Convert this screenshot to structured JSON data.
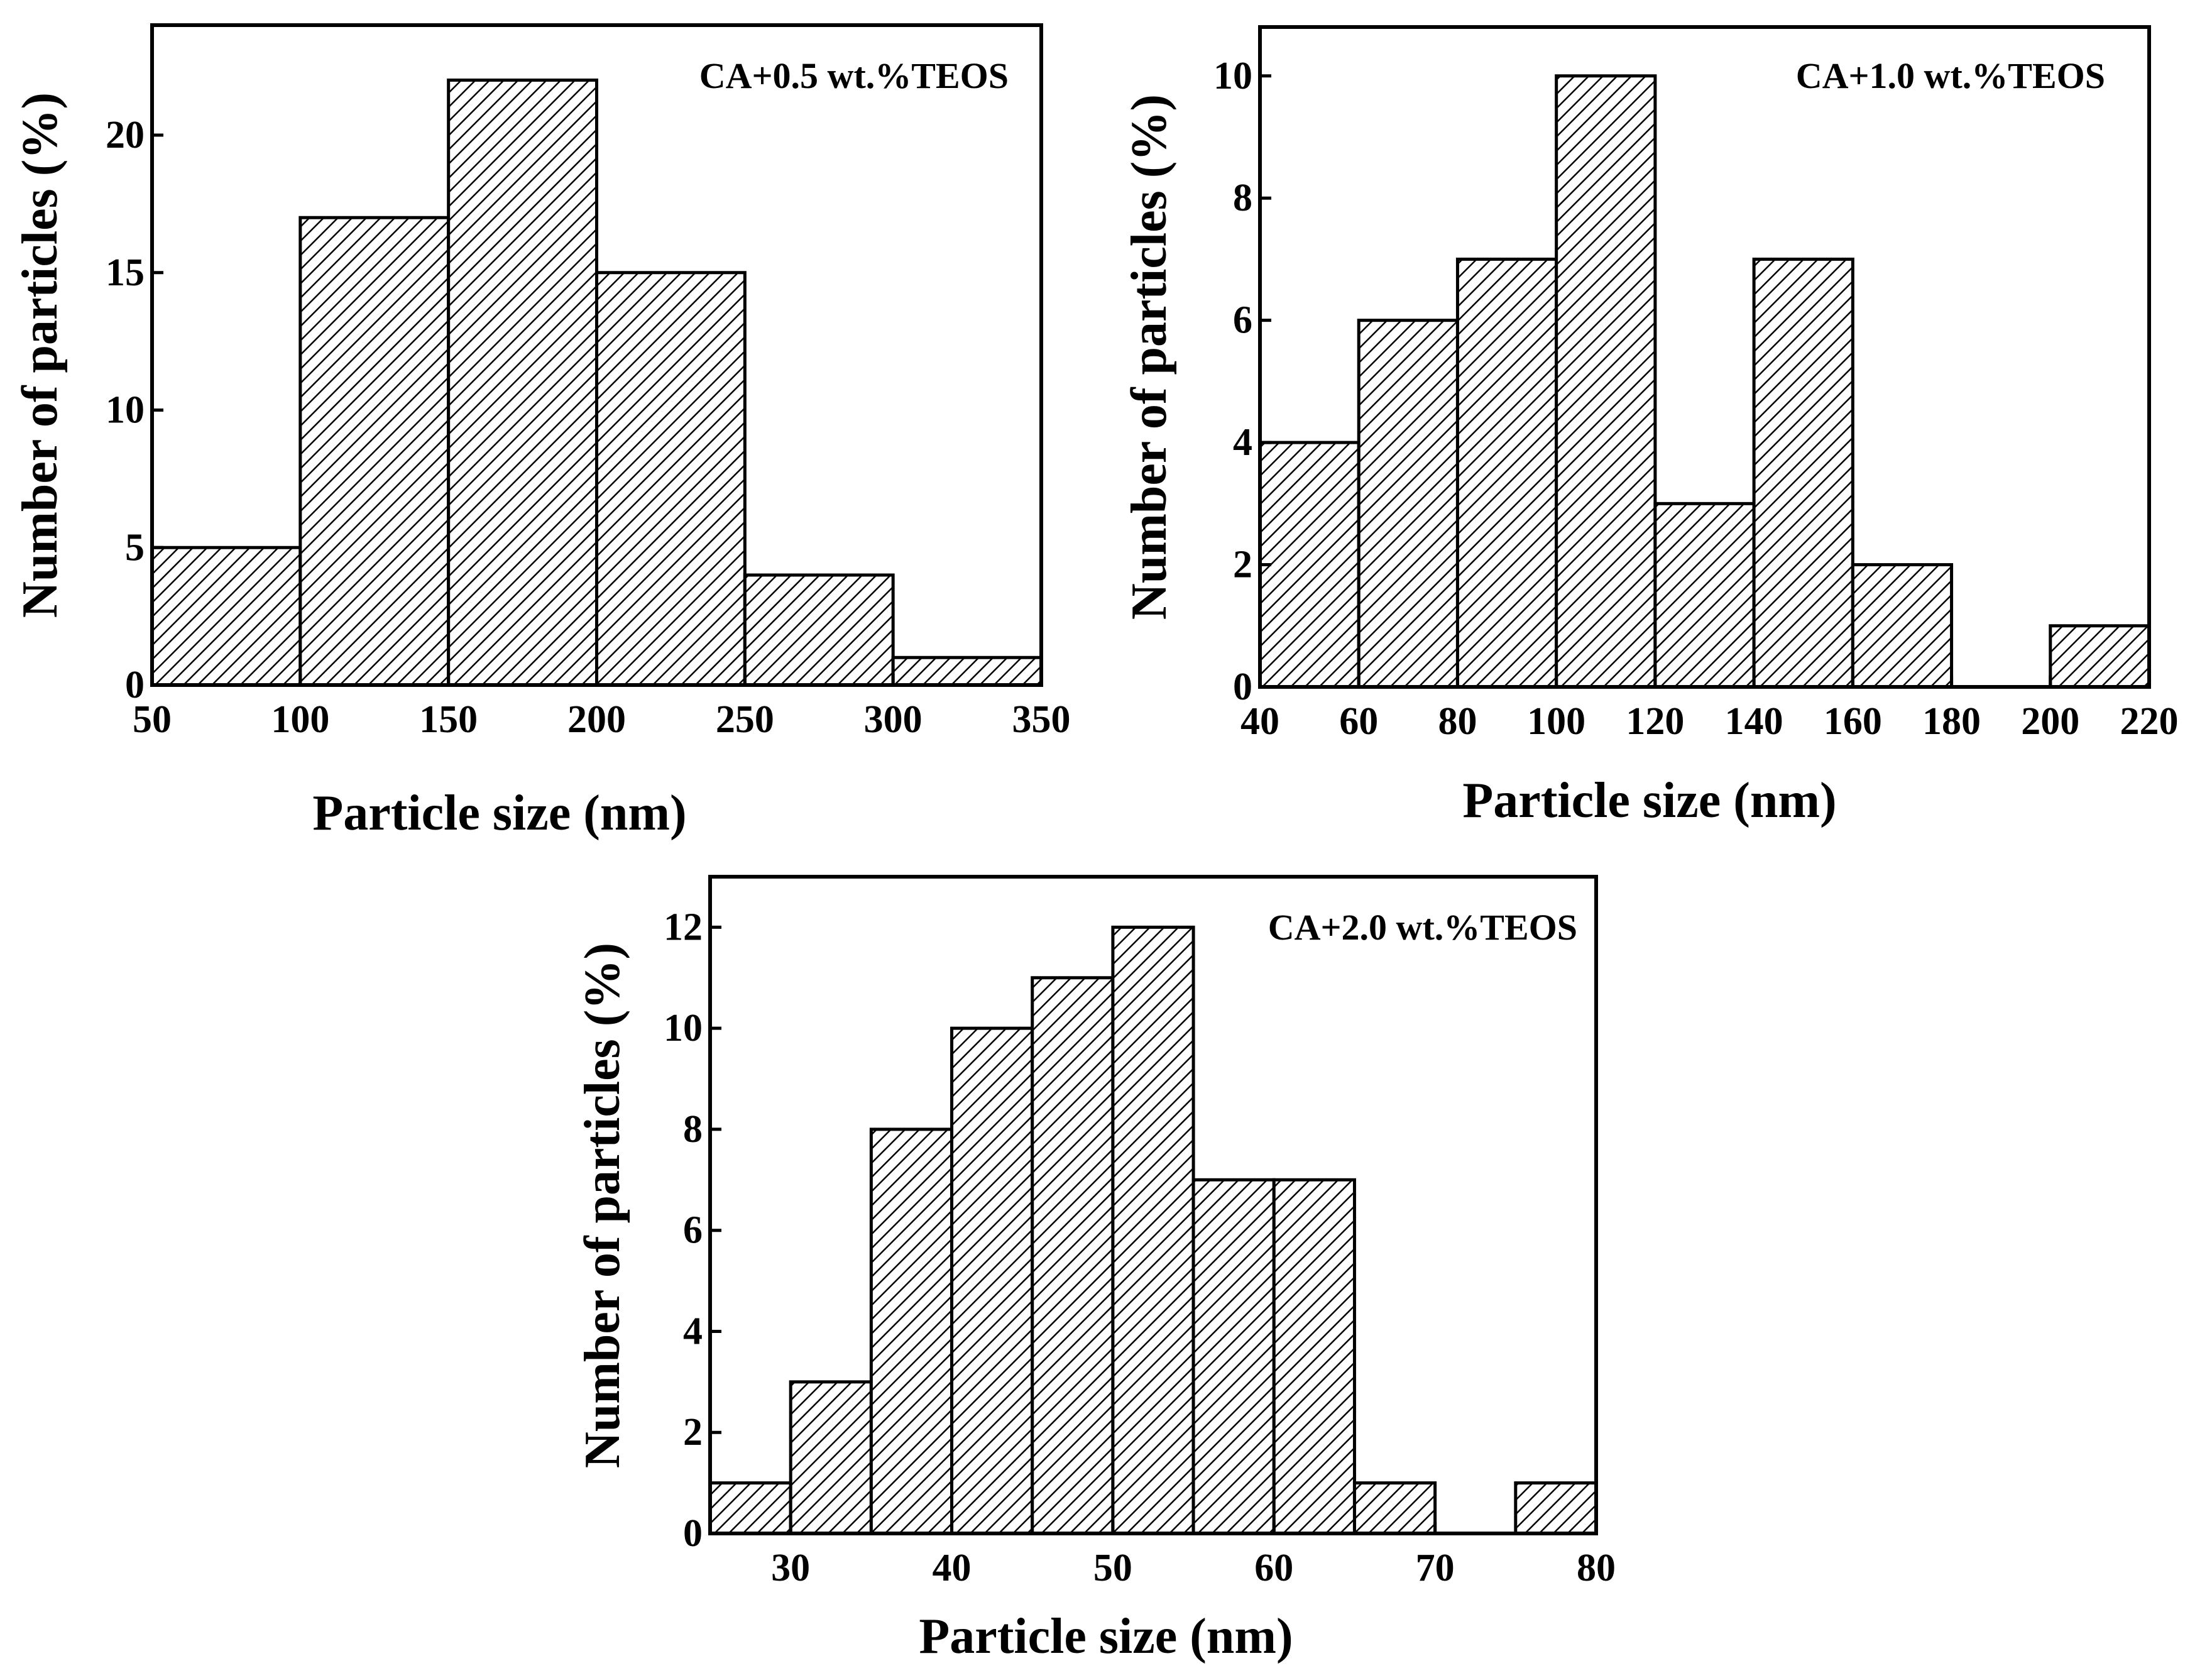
{
  "chart_data": [
    {
      "type": "bar",
      "title": "CA+0.5 wt.%TEOS",
      "xlabel": "Particle size (nm)",
      "ylabel": "Number of particles  (%)",
      "bins": [
        [
          50,
          100
        ],
        [
          100,
          150
        ],
        [
          150,
          200
        ],
        [
          200,
          250
        ],
        [
          250,
          300
        ],
        [
          300,
          350
        ]
      ],
      "values": [
        5,
        17,
        22,
        15,
        4,
        1
      ],
      "xlim": [
        50,
        350
      ],
      "ylim": [
        0,
        24
      ],
      "xticks": [
        50,
        100,
        150,
        200,
        250,
        300,
        350
      ],
      "yticks": [
        0,
        5,
        10,
        15,
        20
      ]
    },
    {
      "type": "bar",
      "title": "CA+1.0 wt.%TEOS",
      "xlabel": "Particle size (nm)",
      "ylabel": "Number of particles  (%)",
      "bins": [
        [
          40,
          60
        ],
        [
          60,
          80
        ],
        [
          80,
          100
        ],
        [
          100,
          120
        ],
        [
          120,
          140
        ],
        [
          140,
          160
        ],
        [
          160,
          180
        ],
        [
          200,
          220
        ]
      ],
      "values": [
        4,
        6,
        7,
        10,
        3,
        7,
        2,
        1
      ],
      "xlim": [
        40,
        220
      ],
      "ylim": [
        0,
        10.8
      ],
      "xticks": [
        40,
        60,
        80,
        100,
        120,
        140,
        160,
        180,
        200,
        220
      ],
      "yticks": [
        0,
        2,
        4,
        6,
        8,
        10
      ]
    },
    {
      "type": "bar",
      "title": "CA+2.0 wt.%TEOS",
      "xlabel": "Particle size (nm)",
      "ylabel": "Number of particles  (%)",
      "bins": [
        [
          25,
          30
        ],
        [
          30,
          35
        ],
        [
          35,
          40
        ],
        [
          40,
          45
        ],
        [
          45,
          50
        ],
        [
          50,
          55
        ],
        [
          55,
          60
        ],
        [
          60,
          65
        ],
        [
          65,
          70
        ],
        [
          75,
          80
        ]
      ],
      "values": [
        1,
        3,
        8,
        10,
        11,
        12,
        7,
        7,
        1,
        1
      ],
      "xlim": [
        25,
        80
      ],
      "ylim": [
        0,
        13
      ],
      "xticks": [
        30,
        40,
        50,
        60,
        70,
        80
      ],
      "yticks": [
        0,
        2,
        4,
        6,
        8,
        10,
        12
      ]
    }
  ]
}
